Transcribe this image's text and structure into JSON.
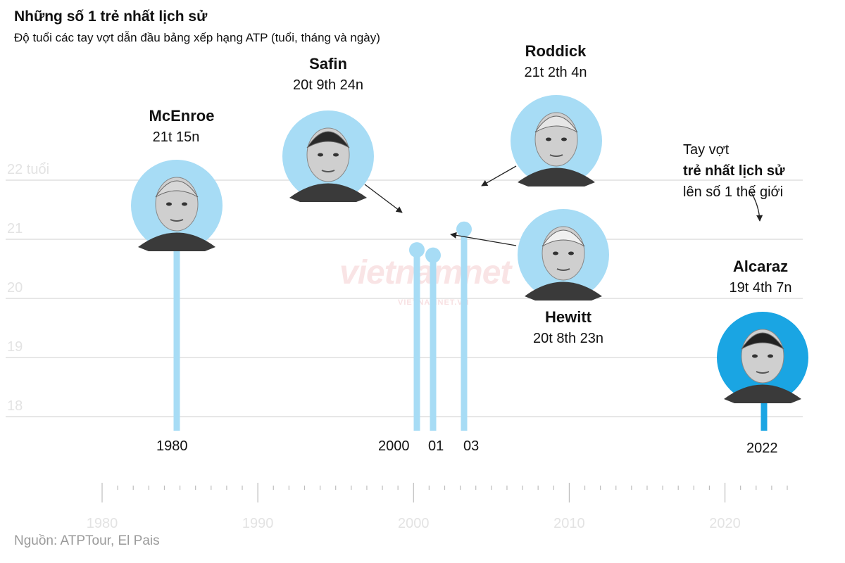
{
  "title": "Những số 1 trẻ nhất lịch sử",
  "subtitle": "Độ tuổi các tay vợt dẫn đầu bảng xếp hạng ATP (tuổi, tháng và ngày)",
  "source": "Nguồn: ATPTour, El Pais",
  "watermark": {
    "main": "vietnamnet",
    "sub": "VIETNAMNET.VN"
  },
  "annotation": {
    "line1": "Tay vợt",
    "line2": "trẻ nhất lịch sử",
    "line3": "lên số 1 thế giới"
  },
  "colors": {
    "stem": "#a7dcf5",
    "highlight": "#1aa5e3",
    "grid": "#cfcfcf",
    "faint_label": "#e3e3e3",
    "axis": "#bdbdbd"
  },
  "chart_data": {
    "type": "scatter",
    "ylabel": "",
    "y_tick_labels": [
      "22 tuổi",
      "21",
      "20",
      "19",
      "18"
    ],
    "y_ticks": [
      22,
      21,
      20,
      19,
      18
    ],
    "ylim": [
      17.8,
      22.2
    ],
    "x_tick_labels": [
      "1980",
      "1990",
      "2000",
      "2010",
      "2020"
    ],
    "x_ticks": [
      1980,
      1990,
      2000,
      2010,
      2020
    ],
    "xlim": [
      1980,
      2024
    ],
    "grid": true,
    "players": [
      {
        "name": "McEnroe",
        "age_label": "21t 15n",
        "year_label": "1980",
        "year": 1980,
        "age": 21.04,
        "photo_icon": "mcenroe-photo-icon"
      },
      {
        "name": "Safin",
        "age_label": "20t 9th 24n",
        "year_label": "2000",
        "year": 2000,
        "age": 20.82,
        "photo_icon": "safin-photo-icon"
      },
      {
        "name": "Hewitt",
        "age_label": "20t 8th 23n",
        "year_label": "01",
        "year": 2001,
        "age": 20.73,
        "photo_icon": "hewitt-photo-icon"
      },
      {
        "name": "Roddick",
        "age_label": "21t 2th 4n",
        "year_label": "03",
        "year": 2003,
        "age": 21.17,
        "photo_icon": "roddick-photo-icon"
      },
      {
        "name": "Alcaraz",
        "age_label": "19t 4th 7n",
        "year_label": "2022",
        "year": 2022,
        "age": 19.35,
        "photo_icon": "alcaraz-photo-icon"
      }
    ]
  }
}
